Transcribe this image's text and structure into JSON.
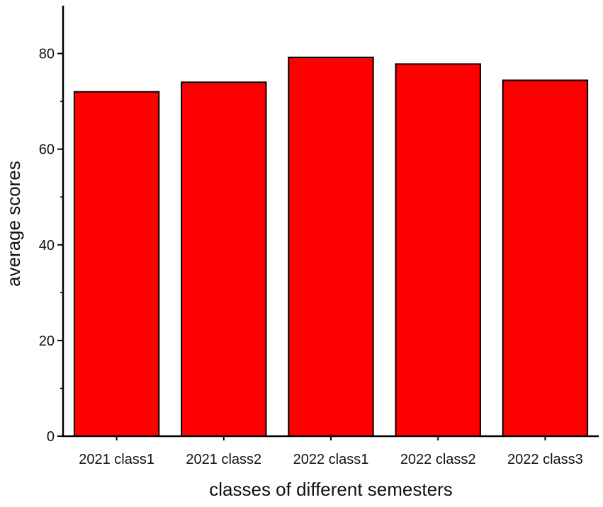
{
  "chart_data": {
    "type": "bar",
    "title": "",
    "xlabel": "classes of different semesters",
    "ylabel": "average scores",
    "categories": [
      "2021 class1",
      "2021 class2",
      "2022 class1",
      "2022 class2",
      "2022 class3"
    ],
    "values": [
      72,
      74,
      79.2,
      77.8,
      74.4
    ],
    "ylim": [
      0,
      90
    ],
    "yticks": [
      0,
      20,
      40,
      60,
      80
    ],
    "yticks_labels": [
      "0",
      "20",
      "40",
      "60",
      "80"
    ],
    "grid": false,
    "legend": "none",
    "bar_color": "#ff0000",
    "bar_edge_color": "#000000"
  }
}
